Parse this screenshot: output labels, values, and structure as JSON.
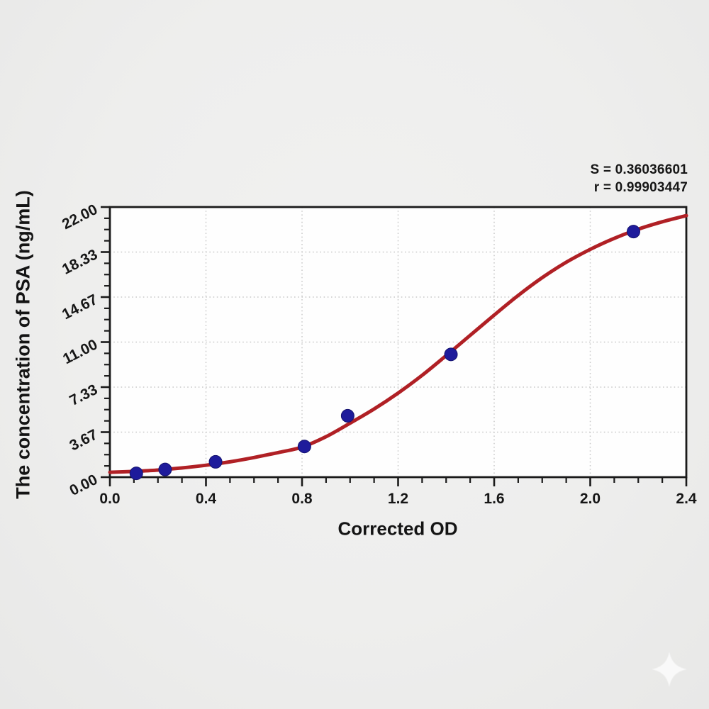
{
  "chart_data": {
    "type": "scatter",
    "title": "",
    "xlabel": "Corrected OD",
    "ylabel": "The concentration of PSA (ng/mL)",
    "xlim": [
      0,
      2.4
    ],
    "ylim": [
      0,
      22
    ],
    "x_ticks": {
      "values": [
        0,
        0.4,
        0.8,
        1.2,
        1.6,
        2.0,
        2.4
      ],
      "labels": [
        "0.0",
        "0.4",
        "0.8",
        "1.2",
        "1.6",
        "2.0",
        "2.4"
      ],
      "minor_divisions": 4
    },
    "y_ticks": {
      "values": [
        0,
        3.6667,
        7.3333,
        11,
        14.6667,
        18.3333,
        22
      ],
      "labels": [
        "0.00",
        "3.67",
        "7.33",
        "11.00",
        "14.67",
        "18.33",
        "22.00"
      ],
      "minor_divisions": 4,
      "label_rotation_deg": -27
    },
    "grid": {
      "show": true,
      "style": "dotted",
      "at": "major-ticks"
    },
    "legend": {
      "show": false
    },
    "series": [
      {
        "name": "standard-points",
        "type": "scatter",
        "marker": "circle",
        "points": [
          [
            0.11,
            0.313
          ],
          [
            0.23,
            0.625
          ],
          [
            0.44,
            1.25
          ],
          [
            0.81,
            2.5
          ],
          [
            0.99,
            5.0
          ],
          [
            1.42,
            10.0
          ],
          [
            2.18,
            20.0
          ]
        ]
      },
      {
        "name": "4pl-fit-curve",
        "type": "line",
        "points": [
          [
            0.0,
            0.4
          ],
          [
            0.1,
            0.47
          ],
          [
            0.2,
            0.58
          ],
          [
            0.3,
            0.75
          ],
          [
            0.4,
            0.97
          ],
          [
            0.5,
            1.25
          ],
          [
            0.6,
            1.6
          ],
          [
            0.7,
            2.0
          ],
          [
            0.8,
            2.45
          ],
          [
            0.9,
            3.3
          ],
          [
            1.0,
            4.4
          ],
          [
            1.1,
            5.55
          ],
          [
            1.2,
            6.85
          ],
          [
            1.3,
            8.3
          ],
          [
            1.4,
            9.9
          ],
          [
            1.5,
            11.55
          ],
          [
            1.6,
            13.2
          ],
          [
            1.7,
            14.8
          ],
          [
            1.8,
            16.25
          ],
          [
            1.9,
            17.5
          ],
          [
            2.0,
            18.55
          ],
          [
            2.1,
            19.45
          ],
          [
            2.2,
            20.2
          ],
          [
            2.3,
            20.8
          ],
          [
            2.4,
            21.3
          ]
        ]
      }
    ],
    "annotations": {
      "s_line": "S = 0.36036601",
      "r_line": "r = 0.99903447"
    },
    "stats": {
      "S": "0.36036601",
      "r": "0.99903447"
    },
    "colors": {
      "curve": "#b02025",
      "point": "#1e1b9b",
      "point_edge": "#15136e",
      "axis": "#1a1a1a",
      "grid": "#c9c9c9",
      "plot_bg": "#fefefe",
      "text": "#161616",
      "page_bg": "#eeeeee",
      "watermark": "#ffffff"
    }
  }
}
